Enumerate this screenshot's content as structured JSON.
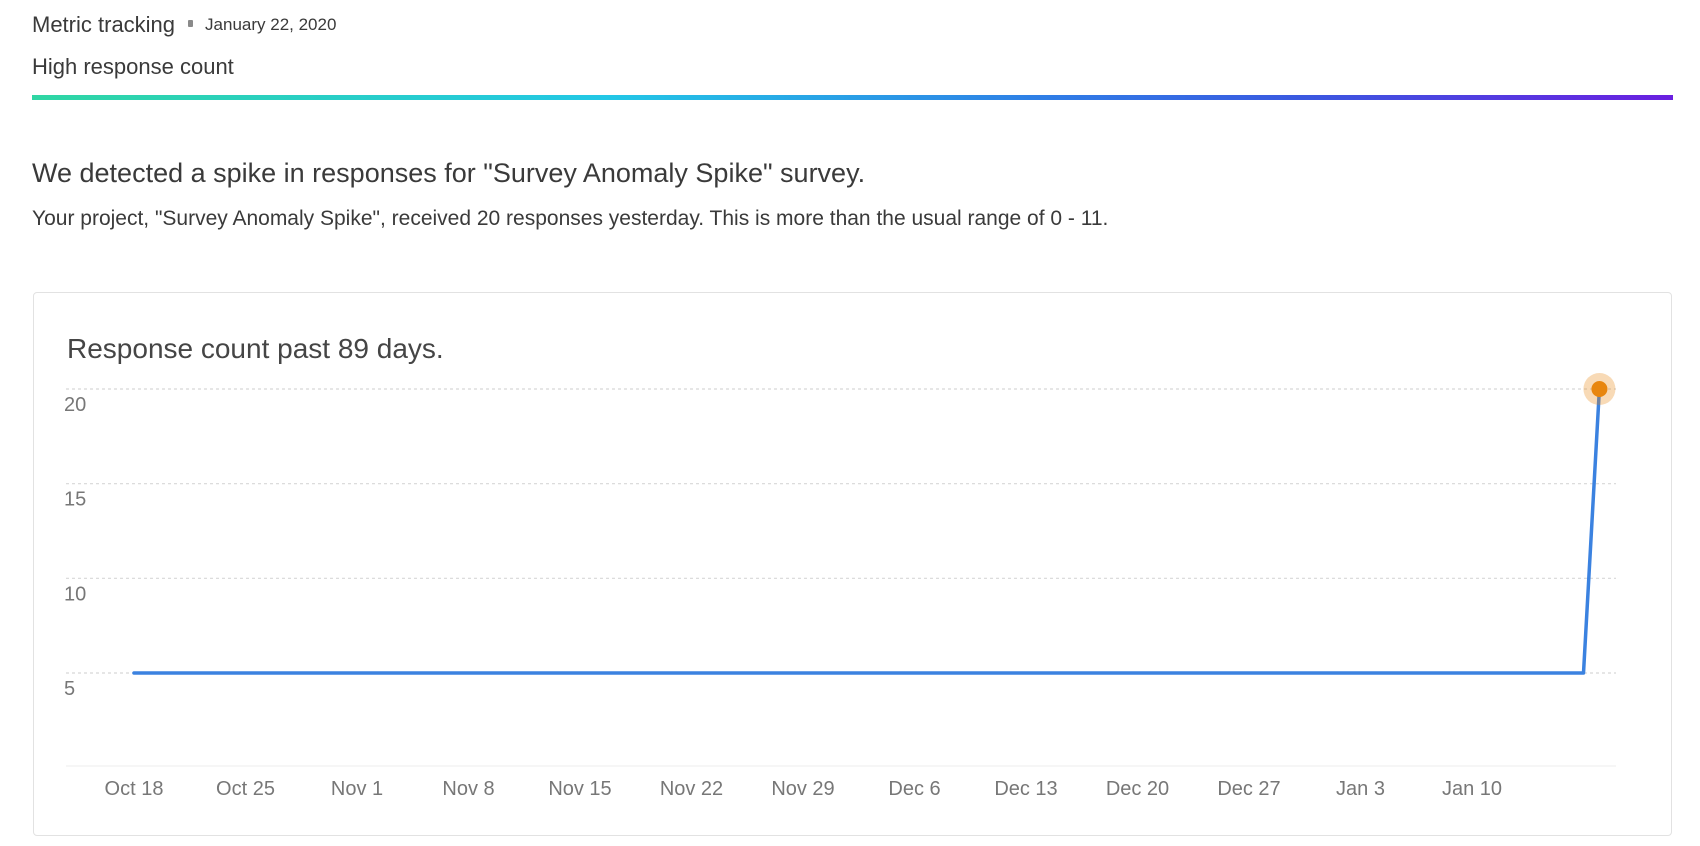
{
  "header": {
    "app_title": "Metric tracking",
    "date": "January 22, 2020",
    "subtitle": "High response count"
  },
  "alert": {
    "heading": "We detected a spike in responses for \"Survey Anomaly Spike\" survey.",
    "body": "Your project, \"Survey Anomaly Spike\", received 20 responses yesterday. This is more than the usual range of 0 - 11."
  },
  "colors": {
    "line": "#3b82e0",
    "highlight_point": "#e8860e",
    "grid": "#d8d8d8"
  },
  "chart_data": {
    "type": "line",
    "title": "Response count past 89 days.",
    "xlabel": "",
    "ylabel": "",
    "x_tick_labels": [
      "Oct 18",
      "Oct 25",
      "Nov 1",
      "Nov 8",
      "Nov 15",
      "Nov 22",
      "Nov 29",
      "Dec 6",
      "Dec 13",
      "Dec 20",
      "Dec 27",
      "Jan 3",
      "Jan 10"
    ],
    "y_ticks": [
      5,
      10,
      15,
      20
    ],
    "ylim": [
      0,
      20
    ],
    "grid": true,
    "legend": "none",
    "series": [
      {
        "points": [
          {
            "date": "Oct 18",
            "value": 5
          },
          {
            "date": "Jan 17",
            "value": 5
          },
          {
            "date": "Jan 18",
            "value": 20
          }
        ]
      }
    ],
    "highlight": {
      "date": "Jan 18",
      "value": 20
    }
  }
}
